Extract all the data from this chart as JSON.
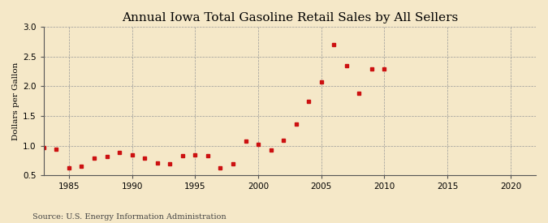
{
  "title": "Annual Iowa Total Gasoline Retail Sales by All Sellers",
  "ylabel": "Dollars per Gallon",
  "source": "Source: U.S. Energy Information Administration",
  "background_color": "#f5e8c8",
  "plot_bg_color": "#f5e8c8",
  "marker_color": "#cc1111",
  "xlim": [
    1983,
    2022
  ],
  "ylim": [
    0.5,
    3.0
  ],
  "xticks": [
    1985,
    1990,
    1995,
    2000,
    2005,
    2010,
    2015,
    2020
  ],
  "yticks": [
    0.5,
    1.0,
    1.5,
    2.0,
    2.5,
    3.0
  ],
  "years": [
    1983,
    1984,
    1985,
    1986,
    1987,
    1988,
    1989,
    1990,
    1991,
    1992,
    1993,
    1994,
    1995,
    1996,
    1997,
    1998,
    1999,
    2000,
    2001,
    2002,
    2003,
    2004,
    2005,
    2006,
    2007,
    2008,
    2009,
    2010
  ],
  "values": [
    0.96,
    0.94,
    0.62,
    0.65,
    0.79,
    0.82,
    0.89,
    0.84,
    0.79,
    0.71,
    0.7,
    0.83,
    0.84,
    0.83,
    0.62,
    0.7,
    1.07,
    1.02,
    0.93,
    1.09,
    1.36,
    1.75,
    2.07,
    2.7,
    2.35,
    1.88,
    2.29,
    2.29
  ],
  "title_fontsize": 11,
  "label_fontsize": 7.5,
  "tick_fontsize": 7.5,
  "source_fontsize": 7
}
